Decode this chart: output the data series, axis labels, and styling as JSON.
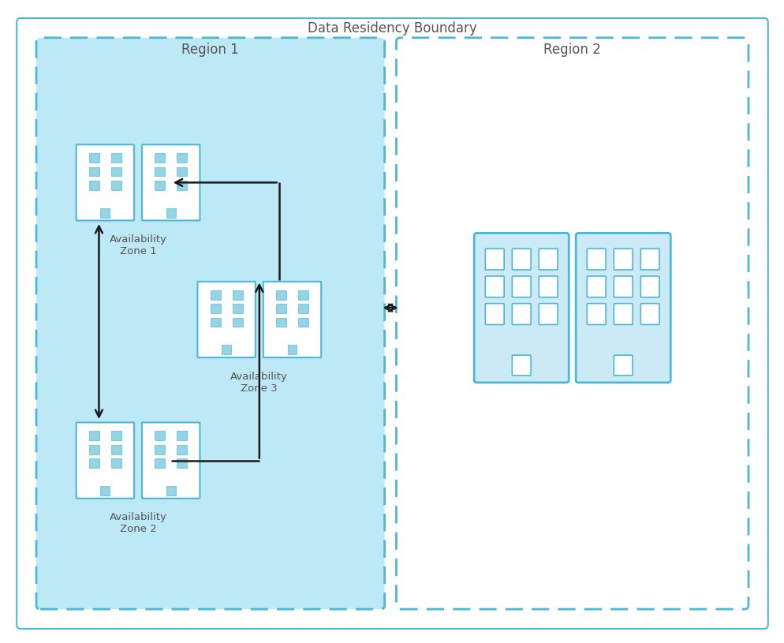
{
  "title": "Data Residency Boundary",
  "region1_label": "Region 1",
  "region2_label": "Region 2",
  "az1_label": "Availability\nZone 1",
  "az2_label": "Availability\nZone 2",
  "az3_label": "Availability\nZone 3",
  "bg_color": "#ffffff",
  "outer_border_color": "#4db8d4",
  "region1_fill": "#bde8f5",
  "region1_border": "#4db8d4",
  "region2_fill": "#ffffff",
  "region2_border": "#4db8d4",
  "building_fill_small": "#ffffff",
  "building_border_small": "#4db8d4",
  "building_fill_large": "#cceaf5",
  "building_border_large": "#4db8d4",
  "window_fill_small": "#4db8d4",
  "window_fill_large": "#ffffff",
  "arrow_color": "#1a1a1a",
  "label_color": "#555555",
  "title_color": "#555555"
}
